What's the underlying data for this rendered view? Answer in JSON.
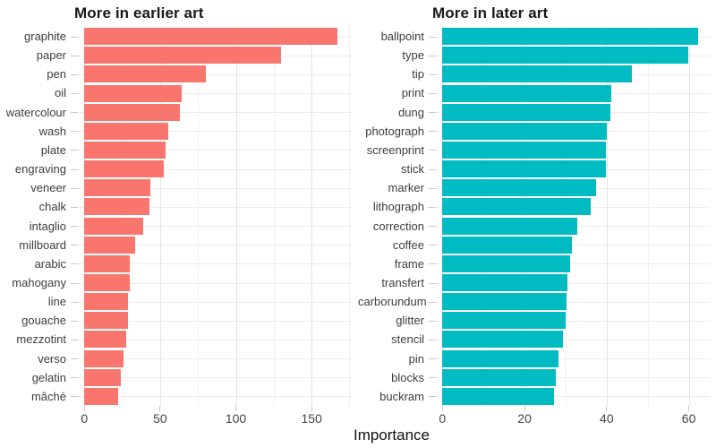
{
  "figure": {
    "xlabel": "Importance",
    "background": "#ffffff"
  },
  "style": {
    "grid_major": "#e3e3e3",
    "grid_minor": "#f1f1f1",
    "row_grid": "#ececec",
    "tick_color": "#c9c9c9",
    "axis_text": "#3d3d3d",
    "title_text": "#191919"
  },
  "chart_data": [
    {
      "type": "bar",
      "orientation": "horizontal",
      "title": "More in earlier art",
      "bar_color": "#F8766D",
      "xlabel": "Importance",
      "xlim": [
        -4.3,
        176.5
      ],
      "ticks": [
        0,
        50,
        100,
        150
      ],
      "minor_ticks": [
        25,
        75,
        125,
        175
      ],
      "grid": true,
      "legend": "none",
      "categories": [
        "graphite",
        "paper",
        "pen",
        "oil",
        "watercolour",
        "wash",
        "plate",
        "engraving",
        "veneer",
        "chalk",
        "intaglio",
        "millboard",
        "arabic",
        "mahogany",
        "line",
        "gouache",
        "mezzotint",
        "verso",
        "gelatin",
        "mâché"
      ],
      "values": [
        167,
        130,
        80,
        64,
        62.8,
        55.4,
        53.8,
        52.6,
        43.7,
        43.2,
        38.9,
        33.6,
        30.2,
        30.1,
        28.7,
        28.5,
        27.9,
        25.9,
        23.9,
        22.5
      ]
    },
    {
      "type": "bar",
      "orientation": "horizontal",
      "title": "More in later art",
      "bar_color": "#00BCC2",
      "xlabel": "Importance",
      "xlim": [
        -1.6,
        65.1
      ],
      "ticks": [
        0,
        20,
        40,
        60
      ],
      "minor_ticks": [
        10,
        30,
        50
      ],
      "grid": true,
      "legend": "none",
      "categories": [
        "ballpoint",
        "type",
        "tip",
        "print",
        "dung",
        "photograph",
        "screenprint",
        "stick",
        "marker",
        "lithograph",
        "correction",
        "coffee",
        "frame",
        "transfert",
        "carborundum",
        "glitter",
        "stencil",
        "pin",
        "blocks",
        "buckram"
      ],
      "values": [
        62.2,
        59.8,
        46.1,
        41.2,
        41.0,
        40.1,
        39.9,
        39.8,
        37.4,
        36.2,
        32.8,
        31.6,
        31.1,
        30.4,
        30.2,
        30.1,
        29.4,
        28.3,
        27.6,
        27.2
      ]
    }
  ]
}
